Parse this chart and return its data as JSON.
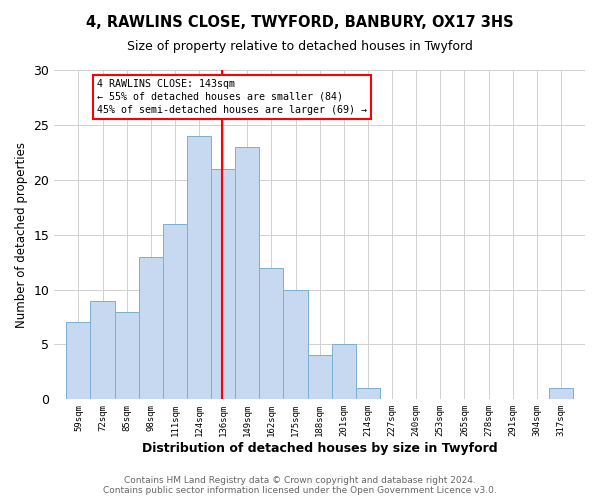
{
  "title1": "4, RAWLINS CLOSE, TWYFORD, BANBURY, OX17 3HS",
  "title2": "Size of property relative to detached houses in Twyford",
  "xlabel": "Distribution of detached houses by size in Twyford",
  "ylabel": "Number of detached properties",
  "footnote": "Contains HM Land Registry data © Crown copyright and database right 2024.\nContains public sector information licensed under the Open Government Licence v3.0.",
  "bin_labels": [
    "59sqm",
    "72sqm",
    "85sqm",
    "98sqm",
    "111sqm",
    "124sqm",
    "136sqm",
    "149sqm",
    "162sqm",
    "175sqm",
    "188sqm",
    "201sqm",
    "214sqm",
    "227sqm",
    "240sqm",
    "253sqm",
    "265sqm",
    "278sqm",
    "291sqm",
    "304sqm",
    "317sqm"
  ],
  "bar_heights": [
    7,
    9,
    8,
    13,
    16,
    24,
    21,
    23,
    12,
    10,
    4,
    5,
    1,
    0,
    0,
    0,
    0,
    0,
    0,
    0,
    1
  ],
  "bar_color": "#c6d9f1",
  "bar_edgecolor": "#7bafd4",
  "vline_color": "red",
  "annotation_text": "4 RAWLINS CLOSE: 143sqm\n← 55% of detached houses are smaller (84)\n45% of semi-detached houses are larger (69) →",
  "annotation_box_color": "white",
  "annotation_box_edgecolor": "red",
  "ylim": [
    0,
    30
  ],
  "yticks": [
    0,
    5,
    10,
    15,
    20,
    25,
    30
  ],
  "grid_color": "#d0d0d0",
  "background_color": "white",
  "title1_fontsize": 10.5,
  "title2_fontsize": 9,
  "xlabel_fontsize": 9,
  "ylabel_fontsize": 8.5,
  "footnote_fontsize": 6.5,
  "footnote_color": "#666666"
}
